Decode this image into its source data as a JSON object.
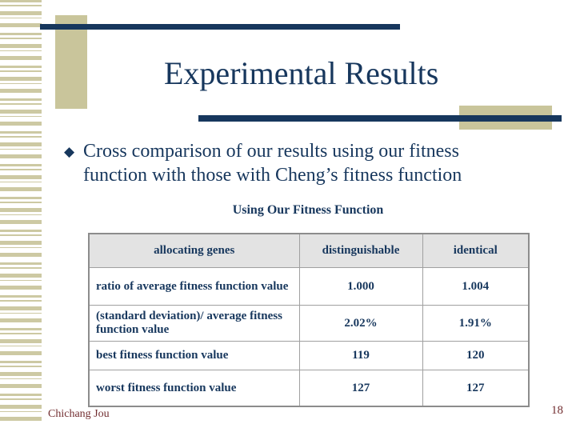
{
  "slide": {
    "title": "Experimental Results",
    "bullet": {
      "marker": "◆",
      "lines": [
        "Cross comparison of our results using our fitness",
        "function with those with Cheng’s fitness function"
      ]
    },
    "table_caption": "Using Our Fitness Function",
    "table": {
      "headers": [
        "allocating genes",
        "distinguishable",
        "identical"
      ],
      "rows": [
        {
          "label": "ratio of average  fitness function value",
          "distinguishable": "1.000",
          "identical": "1.004"
        },
        {
          "label": "(standard  deviation)/  average fitness function value",
          "distinguishable": "2.02%",
          "identical": "1.91%"
        },
        {
          "label": "best fitness function value",
          "distinguishable": "119",
          "identical": "120"
        },
        {
          "label": "worst fitness function value",
          "distinguishable": "127",
          "identical": "127"
        }
      ]
    },
    "footer": {
      "author": "Chichang Jou",
      "page_number": "18"
    }
  },
  "colors": {
    "accent_navy": "#17375d",
    "accent_tan": "#c9c59b",
    "table_header_bg": "#e3e3e3",
    "table_border": "#a0a0a0",
    "footer_maroon": "#722d30",
    "background": "#ffffff"
  },
  "chart_data": {
    "type": "table",
    "title": "Using Our Fitness Function",
    "columns": [
      "allocating genes",
      "distinguishable",
      "identical"
    ],
    "rows": [
      [
        "ratio of average fitness function value",
        "1.000",
        "1.004"
      ],
      [
        "(standard deviation)/ average fitness function value",
        "2.02%",
        "1.91%"
      ],
      [
        "best fitness function value",
        "119",
        "120"
      ],
      [
        "worst fitness function value",
        "127",
        "127"
      ]
    ]
  }
}
